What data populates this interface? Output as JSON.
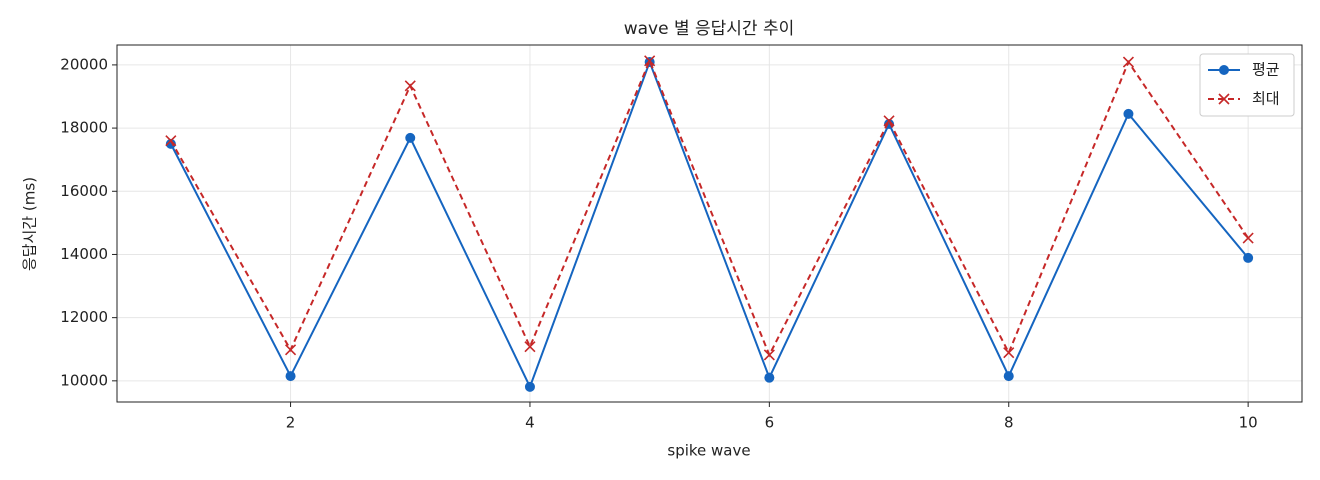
{
  "chart_data": {
    "type": "line",
    "title": "wave 별 응답시간 추이",
    "xlabel": "spike wave",
    "ylabel": "응답시간 (ms)",
    "x": [
      1,
      2,
      3,
      4,
      5,
      6,
      7,
      8,
      9,
      10
    ],
    "series": [
      {
        "name": "평균",
        "color": "#1565c0",
        "marker": "o",
        "linestyle": "solid",
        "values": [
          17500,
          10150,
          17690,
          9810,
          20090,
          10100,
          18130,
          10150,
          18450,
          13890
        ]
      },
      {
        "name": "최대",
        "color": "#c62828",
        "marker": "x",
        "linestyle": "dashed",
        "values": [
          17600,
          10980,
          19340,
          11080,
          20130,
          10820,
          18230,
          10890,
          20090,
          14520
        ]
      }
    ],
    "xlim": [
      0.55,
      10.45
    ],
    "xticks": [
      2,
      4,
      6,
      8,
      10
    ],
    "ylim": [
      9330,
      20630
    ],
    "yticks": [
      10000,
      12000,
      14000,
      16000,
      18000,
      20000
    ],
    "grid": true,
    "legend": "upper right"
  }
}
